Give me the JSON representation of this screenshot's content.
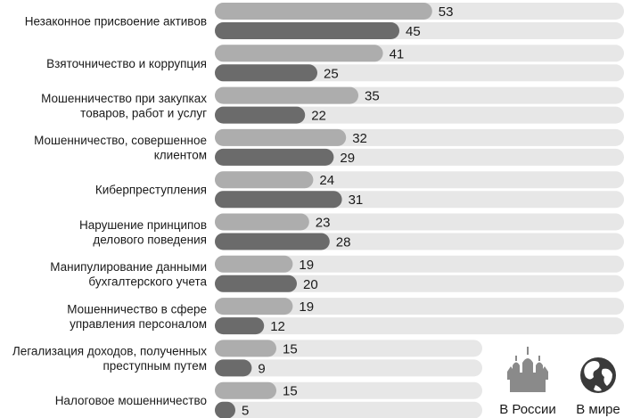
{
  "chart_data": {
    "type": "bar",
    "orientation": "horizontal",
    "title": "",
    "xlabel": "",
    "ylabel": "",
    "xlim": [
      0,
      100
    ],
    "grid": false,
    "legend_position": "bottom-right",
    "categories": [
      [
        "Незаконное присвоение активов"
      ],
      [
        "Взяточничество и коррупция"
      ],
      [
        "Мошенничество при закупках",
        "товаров, работ и услуг"
      ],
      [
        "Мошенничество, совершенное",
        "клиентом"
      ],
      [
        "Киберпреступления"
      ],
      [
        "Нарушение принципов",
        "делового поведения"
      ],
      [
        "Манипулирование данными",
        "бухгалтерского учета"
      ],
      [
        "Мошенничество в сфере",
        "управления персоналом"
      ],
      [
        "Легализация доходов, полученных",
        "преступным путем"
      ],
      [
        "Налоговое мошенничество"
      ]
    ],
    "series": [
      {
        "name": "В России",
        "color": "#adadad",
        "values": [
          53,
          41,
          35,
          32,
          24,
          23,
          19,
          19,
          15,
          15
        ]
      },
      {
        "name": "В мире",
        "color": "#6b6b6b",
        "values": [
          45,
          25,
          22,
          29,
          31,
          28,
          20,
          12,
          9,
          5
        ]
      }
    ],
    "track_color": "#e7e7e7",
    "legend": [
      {
        "label": "В России",
        "icon": "kremlin-icon"
      },
      {
        "label": "В мире",
        "icon": "globe-icon"
      }
    ]
  }
}
